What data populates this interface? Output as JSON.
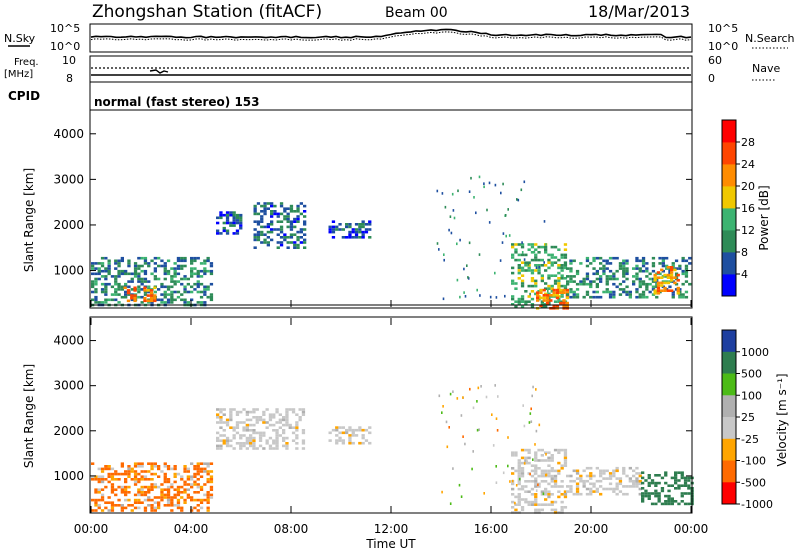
{
  "header": {
    "station": "Zhongshan Station (fitACF)",
    "beam": "Beam 00",
    "date": "18/Mar/2013"
  },
  "noise_panel": {
    "left_label": "N.Sky",
    "right_label": "N.Search",
    "left_ticks": [
      "10^5",
      "10^0"
    ],
    "right_ticks": [
      "10^5",
      "10^0"
    ]
  },
  "freq_panel": {
    "left_label_1": "Freq.",
    "left_label_2": "[MHz]",
    "left_ticks": [
      "10",
      "8"
    ],
    "right_label": "Nave",
    "right_ticks": [
      "60",
      "0"
    ]
  },
  "cpid": {
    "label": "CPID",
    "value": "normal (fast stereo) 153"
  },
  "x_axis": {
    "title": "Time UT",
    "ticks": [
      "00:00",
      "04:00",
      "08:00",
      "12:00",
      "16:00",
      "20:00",
      "00:00"
    ],
    "range_hours": [
      0,
      24
    ]
  },
  "power_panel": {
    "ylabel": "Slant Range [km]",
    "yticks": [
      "1000",
      "2000",
      "3000",
      "4000"
    ],
    "colorbar_title": "Power [dB]",
    "colorbar_ticks": [
      "4",
      "8",
      "12",
      "16",
      "20",
      "24",
      "28"
    ],
    "colors": [
      "#0000ff",
      "#1e4fa0",
      "#2e8b57",
      "#3cb371",
      "#f0c800",
      "#ff8c00",
      "#ff4500",
      "#ff0000"
    ]
  },
  "velocity_panel": {
    "ylabel": "Slant Range [km]",
    "yticks": [
      "1000",
      "2000",
      "3000",
      "4000"
    ],
    "colorbar_title": "Velocity [m s⁻¹]",
    "colorbar_ticks": [
      "1000",
      "500",
      "100",
      "25",
      "-25",
      "-100",
      "-500",
      "-1000"
    ],
    "colors": [
      "#1e3fa0",
      "#2e7d4f",
      "#4cbb17",
      "#b0b0b0",
      "#c8c8c8",
      "#ffa500",
      "#ff6a00",
      "#ff0000"
    ]
  },
  "chart_data": [
    {
      "type": "heatmap",
      "title": "Power [dB]",
      "xlabel": "Time UT",
      "ylabel": "Slant Range [km]",
      "xlim": [
        0,
        24
      ],
      "ylim": [
        200,
        4500
      ],
      "clim": [
        0,
        30
      ],
      "regions": [
        {
          "t0": 0.0,
          "t1": 4.8,
          "r0": 250,
          "r1": 1300,
          "v": 9
        },
        {
          "t0": 1.3,
          "t1": 2.5,
          "r0": 350,
          "r1": 650,
          "v": 22
        },
        {
          "t0": 5.0,
          "t1": 6.0,
          "r0": 1800,
          "r1": 2300,
          "v": 6
        },
        {
          "t0": 6.5,
          "t1": 8.5,
          "r0": 1500,
          "r1": 2500,
          "v": 7
        },
        {
          "t0": 9.5,
          "t1": 11.2,
          "r0": 1750,
          "r1": 2100,
          "v": 6
        },
        {
          "t0": 16.8,
          "t1": 19.0,
          "r0": 200,
          "r1": 1600,
          "v": 12
        },
        {
          "t0": 17.8,
          "t1": 19.0,
          "r0": 200,
          "r1": 600,
          "v": 22
        },
        {
          "t0": 19.0,
          "t1": 24.0,
          "r0": 400,
          "r1": 1300,
          "v": 9
        },
        {
          "t0": 22.5,
          "t1": 23.5,
          "r0": 500,
          "r1": 1100,
          "v": 20
        }
      ]
    },
    {
      "type": "heatmap",
      "title": "Velocity [m s-1]",
      "xlabel": "Time UT",
      "ylabel": "Slant Range [km]",
      "xlim": [
        0,
        24
      ],
      "ylim": [
        200,
        4500
      ],
      "clim": [
        -1000,
        1000
      ],
      "regions": [
        {
          "t0": 0.0,
          "t1": 4.8,
          "r0": 250,
          "r1": 1300,
          "v": -150
        },
        {
          "t0": 5.0,
          "t1": 8.5,
          "r0": 1600,
          "r1": 2500,
          "v": 0
        },
        {
          "t0": 9.5,
          "t1": 11.2,
          "r0": 1750,
          "r1": 2100,
          "v": 0
        },
        {
          "t0": 16.8,
          "t1": 19.0,
          "r0": 200,
          "r1": 1600,
          "v": 0
        },
        {
          "t0": 19.0,
          "t1": 22.0,
          "r0": 600,
          "r1": 1200,
          "v": 0
        },
        {
          "t0": 22.0,
          "t1": 24.0,
          "r0": 400,
          "r1": 1100,
          "v": 800
        }
      ]
    }
  ]
}
